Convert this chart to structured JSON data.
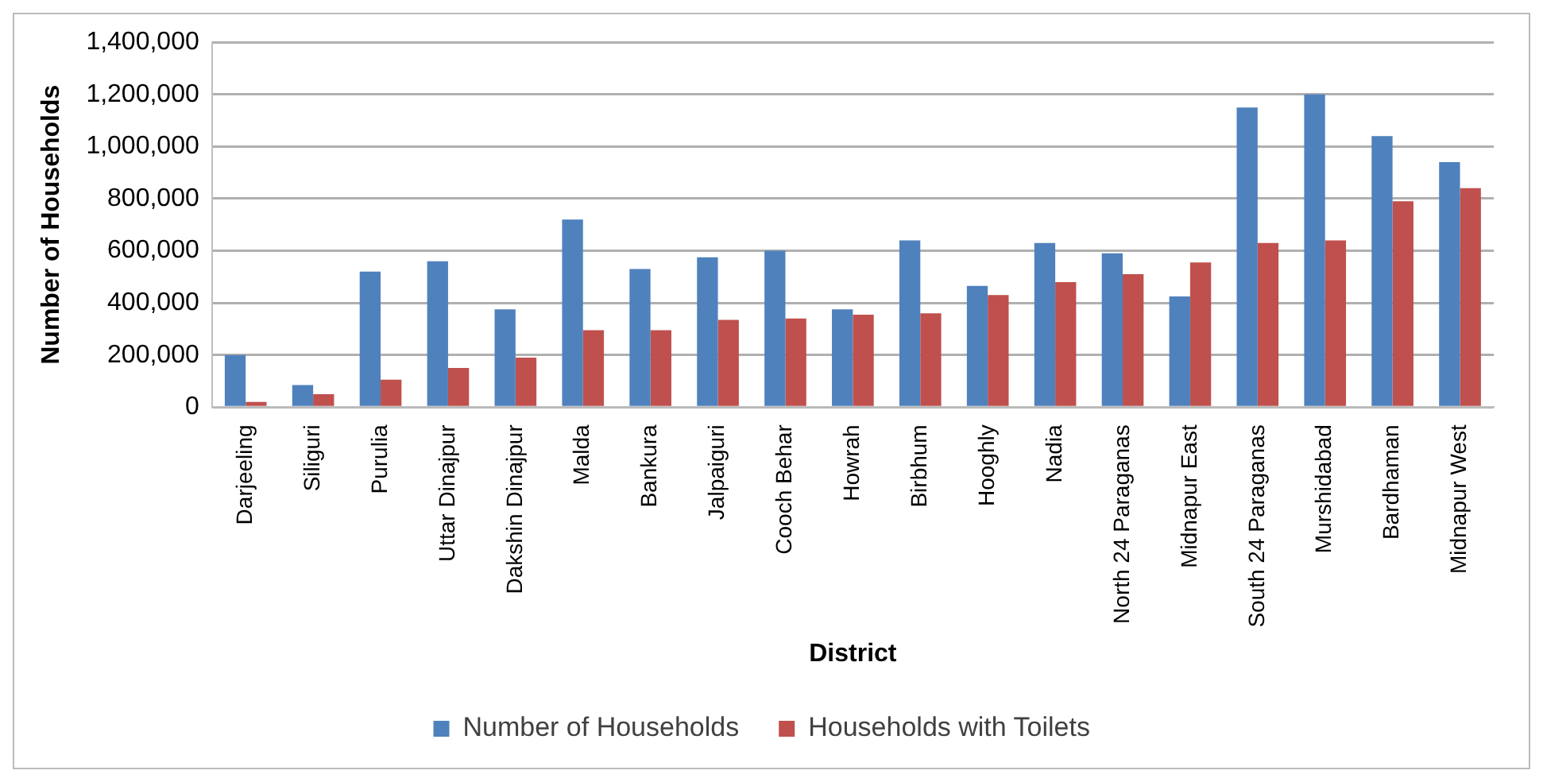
{
  "chart_data": {
    "type": "bar",
    "xlabel": "District",
    "ylabel": "Number of Households",
    "categories": [
      "Darjeeling",
      "Siliguri",
      "Purulia",
      "Uttar Dinajpur",
      "Dakshin Dinajpur",
      "Malda",
      "Bankura",
      "Jalpaiguri",
      "Cooch Behar",
      "Howrah",
      "Birbhum",
      "Hooghly",
      "Nadia",
      "North 24 Paraganas",
      "Midnapur East",
      "South 24 Paraganas",
      "Murshidabad",
      "Bardhaman",
      "Midnapur West"
    ],
    "series": [
      {
        "name": "Number of Households",
        "color": "#4f81bd",
        "values": [
          200000,
          85000,
          520000,
          560000,
          375000,
          720000,
          530000,
          575000,
          600000,
          375000,
          640000,
          465000,
          630000,
          590000,
          425000,
          1150000,
          1200000,
          1040000,
          940000
        ]
      },
      {
        "name": "Households with Toilets",
        "color": "#c0504d",
        "values": [
          20000,
          50000,
          105000,
          150000,
          190000,
          295000,
          295000,
          335000,
          340000,
          355000,
          360000,
          430000,
          480000,
          510000,
          555000,
          630000,
          640000,
          790000,
          840000
        ]
      }
    ],
    "ylim": [
      0,
      1400000
    ],
    "yticks": [
      {
        "value": 0,
        "label": "0"
      },
      {
        "value": 200000,
        "label": "200,000"
      },
      {
        "value": 400000,
        "label": "400,000"
      },
      {
        "value": 600000,
        "label": "600,000"
      },
      {
        "value": 800000,
        "label": "800,000"
      },
      {
        "value": 1000000,
        "label": "1,000,000"
      },
      {
        "value": 1200000,
        "label": "1,200,000"
      },
      {
        "value": 1400000,
        "label": "1,400,000"
      }
    ],
    "grid": "y",
    "legend": "bottom"
  }
}
